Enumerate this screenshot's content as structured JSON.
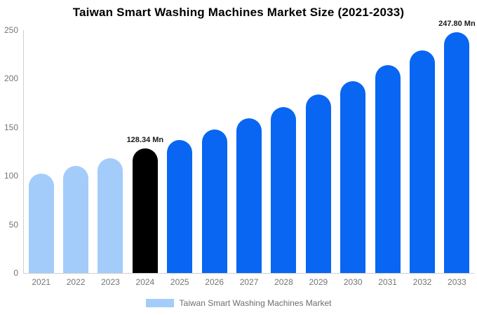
{
  "chart_data": {
    "type": "bar",
    "title": "Taiwan Smart Washing Machines Market Size (2021-2033)",
    "unit": "Mn",
    "categories": [
      "2021",
      "2022",
      "2023",
      "2024",
      "2025",
      "2026",
      "2027",
      "2028",
      "2029",
      "2030",
      "2031",
      "2032",
      "2033"
    ],
    "values": [
      102,
      110,
      118,
      128.34,
      137.2,
      147.7,
      159.2,
      171,
      183.4,
      197.4,
      213.8,
      229,
      247.8
    ],
    "bar_styles": [
      "historical",
      "historical",
      "historical",
      "base_year",
      "forecast",
      "forecast",
      "forecast",
      "forecast",
      "forecast",
      "forecast",
      "forecast",
      "forecast",
      "forecast"
    ],
    "data_labels": [
      "",
      "",
      "",
      "128.34 Mn",
      "",
      "",
      "",
      "",
      "",
      "",
      "",
      "",
      "247.80 Mn"
    ],
    "xlabel": "",
    "ylabel": "",
    "ylim": [
      0,
      250
    ],
    "yticks": [
      0,
      50,
      100,
      150,
      200,
      250
    ],
    "grid": false,
    "legend": [
      "Taiwan Smart Washing Machines Market"
    ],
    "legend_position": "bottom"
  },
  "colors": {
    "historical": "#A3CCFA",
    "base_year": "#000000",
    "forecast": "#0866F2",
    "axis": "#CFCFCF",
    "tick_text": "#757575",
    "title_text": "#000000",
    "data_label_text": "#1A1A1A",
    "legend_text": "#6E6E6E",
    "background": "#FFFFFF"
  }
}
